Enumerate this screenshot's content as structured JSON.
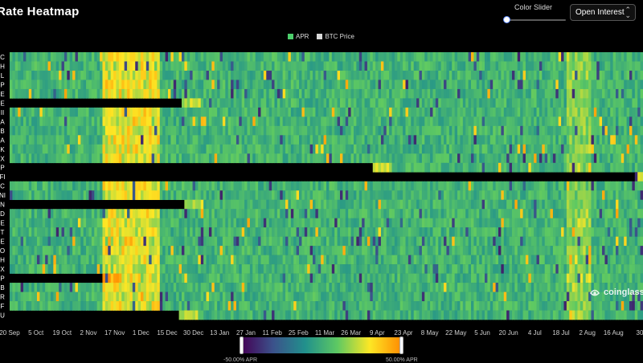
{
  "header": {
    "title": "Rate Heatmap",
    "slider_label": "Color Slider",
    "slider_value": 0,
    "select_value": "Open Interest"
  },
  "legend": [
    {
      "label": "APR",
      "color": "#4cce6b"
    },
    {
      "label": "BTC Price",
      "color": "#d9d9d9"
    }
  ],
  "watermark": "coinglass",
  "colorbar": {
    "min_label": "-50.00% APR",
    "max_label": "50.00% APR",
    "colors": [
      "#440154",
      "#3b528b",
      "#21918c",
      "#5ec962",
      "#fde725",
      "#ff8a00"
    ]
  },
  "chart_data": {
    "type": "heatmap",
    "title": "Rate Heatmap",
    "colorbar_range": [
      -50,
      50
    ],
    "x_ticks": [
      "20 Sep",
      "5 Oct",
      "19 Oct",
      "2 Nov",
      "17 Nov",
      "1 Dec",
      "15 Dec",
      "30 Dec",
      "13 Jan",
      "27 Jan",
      "11 Feb",
      "25 Feb",
      "11 Mar",
      "26 Mar",
      "9 Apr",
      "23 Apr",
      "8 May",
      "22 May",
      "5 Jun",
      "20 Jun",
      "4 Jul",
      "18 Jul",
      "2 Aug",
      "16 Aug",
      "30"
    ],
    "rows": [
      {
        "label": "C",
        "listed_from": 0
      },
      {
        "label": "H",
        "listed_from": 0
      },
      {
        "label": "L",
        "listed_from": 0
      },
      {
        "label": "P",
        "listed_from": 0
      },
      {
        "label": "E",
        "listed_from": 0
      },
      {
        "label": "E",
        "listed_from": 0.27
      },
      {
        "label": "II",
        "listed_from": 0
      },
      {
        "label": "A",
        "listed_from": 0
      },
      {
        "label": "B",
        "listed_from": 0
      },
      {
        "label": "A",
        "listed_from": 0
      },
      {
        "label": "K",
        "listed_from": 0
      },
      {
        "label": "X",
        "listed_from": 0
      },
      {
        "label": "P",
        "listed_from": 0.57
      },
      {
        "label": "FI",
        "listed_from": 0.985
      },
      {
        "label": "C",
        "listed_from": 0
      },
      {
        "label": "NI",
        "listed_from": 0
      },
      {
        "label": "N",
        "listed_from": 0.275
      },
      {
        "label": "D",
        "listed_from": 0
      },
      {
        "label": "E",
        "listed_from": 0
      },
      {
        "label": "T",
        "listed_from": 0
      },
      {
        "label": "E",
        "listed_from": 0
      },
      {
        "label": "O",
        "listed_from": 0
      },
      {
        "label": "H",
        "listed_from": 0
      },
      {
        "label": "X",
        "listed_from": 0
      },
      {
        "label": "P",
        "listed_from": 0.145
      },
      {
        "label": "B",
        "listed_from": 0
      },
      {
        "label": "R",
        "listed_from": 0
      },
      {
        "label": "F",
        "listed_from": 0
      },
      {
        "label": "U",
        "listed_from": 0.265
      }
    ]
  }
}
